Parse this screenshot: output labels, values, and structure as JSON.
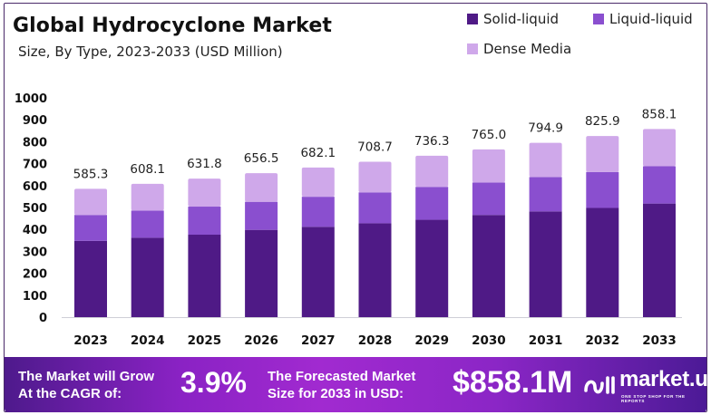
{
  "header": {
    "title": "Global Hydrocyclone Market",
    "subtitle": "Size, By Type, 2023-2033 (USD Million)"
  },
  "legend": [
    {
      "label": "Solid-liquid",
      "color": "#4f1a86"
    },
    {
      "label": "Liquid-liquid",
      "color": "#8a4fcf"
    },
    {
      "label": "Dense Media",
      "color": "#cfa8ea"
    }
  ],
  "chart_data": {
    "type": "bar",
    "stacked": true,
    "title": "Global Hydrocyclone Market",
    "subtitle": "Size, By Type, 2023-2033 (USD Million)",
    "xlabel": "",
    "ylabel": "",
    "ylim": [
      0,
      1000
    ],
    "yticks": [
      0,
      100,
      200,
      300,
      400,
      500,
      600,
      700,
      800,
      900,
      1000
    ],
    "grid": false,
    "legend_position": "top-right",
    "categories": [
      "2023",
      "2024",
      "2025",
      "2026",
      "2027",
      "2028",
      "2029",
      "2030",
      "2031",
      "2032",
      "2033"
    ],
    "totals": [
      585.3,
      608.1,
      631.8,
      656.5,
      682.1,
      708.7,
      736.3,
      765.0,
      794.9,
      825.9,
      858.1
    ],
    "total_labels": [
      "585.3",
      "608.1",
      "631.8",
      "656.5",
      "682.1",
      "708.7",
      "736.3",
      "765.0",
      "794.9",
      "825.9",
      "858.1"
    ],
    "series": [
      {
        "name": "Solid-liquid",
        "color": "#4f1a86",
        "values": [
          348,
          362,
          376,
          398,
          412,
          428,
          444,
          466,
          482,
          498,
          518
        ]
      },
      {
        "name": "Liquid-liquid",
        "color": "#8a4fcf",
        "values": [
          118,
          124,
          128,
          128,
          137,
          141,
          150,
          148,
          157,
          164,
          170
        ]
      },
      {
        "name": "Dense Media",
        "color": "#cfa8ea",
        "values": [
          119.3,
          122.1,
          127.8,
          130.5,
          133.1,
          139.7,
          142.3,
          151.0,
          155.9,
          163.9,
          170.1
        ]
      }
    ]
  },
  "banner": {
    "cagr_text_line1": "The Market will Grow",
    "cagr_text_line2": "At the CAGR of:",
    "cagr_value": "3.9%",
    "forecast_text_line1": "The Forecasted Market",
    "forecast_text_line2": "Size for 2033 in USD:",
    "forecast_value": "$858.1M",
    "brand_name": "market.us",
    "brand_tagline": "ONE STOP SHOP FOR THE REPORTS"
  }
}
